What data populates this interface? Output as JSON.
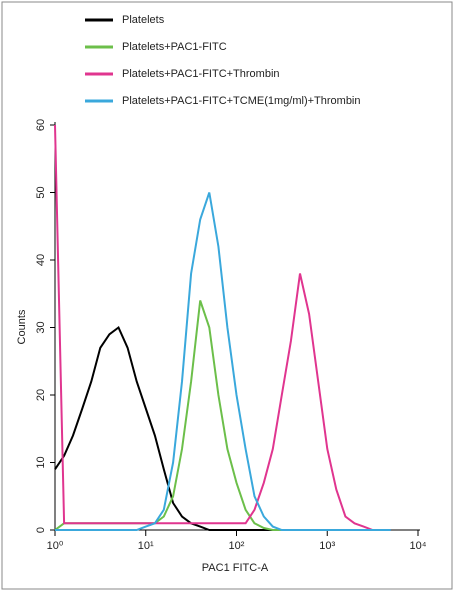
{
  "chart_data": {
    "type": "line",
    "x_label": "PAC1 FITC-A",
    "y_label": "Counts",
    "xscale": "log",
    "xlim": [
      1,
      10000
    ],
    "ylim": [
      0,
      60
    ],
    "xticks": [
      {
        "value": 1,
        "label": "10⁰"
      },
      {
        "value": 10,
        "label": "10¹"
      },
      {
        "value": 100,
        "label": "10²"
      },
      {
        "value": 1000,
        "label": "10³"
      },
      {
        "value": 10000,
        "label": "10⁴"
      }
    ],
    "yticks": [
      0,
      10,
      20,
      30,
      40,
      50,
      60
    ],
    "x": [
      1,
      1.26,
      1.58,
      2,
      2.51,
      3.16,
      3.98,
      5.01,
      6.31,
      7.94,
      10,
      12.6,
      15.8,
      20,
      25.1,
      31.6,
      39.8,
      50.1,
      63.1,
      79.4,
      100,
      126,
      158,
      200,
      251,
      316,
      398,
      501,
      631,
      794,
      1000,
      1259,
      1585,
      1995,
      2512,
      3162,
      3981,
      5012
    ],
    "series": [
      {
        "name": "Platelets",
        "color": "#000000",
        "values": [
          9,
          11,
          14,
          18,
          22,
          27,
          29,
          30,
          27,
          22,
          18,
          14,
          9,
          4,
          2,
          1,
          0.5,
          0,
          0,
          0,
          0,
          0,
          0,
          0,
          0,
          0,
          0,
          0,
          0,
          0,
          0,
          0,
          0,
          0,
          0,
          0,
          0,
          0
        ]
      },
      {
        "name": "Platelets+PAC1-FITC",
        "color": "#6cbf4a",
        "values": [
          0,
          1,
          1,
          1,
          1,
          1,
          1,
          1,
          1,
          1,
          1,
          1,
          2,
          5,
          12,
          22,
          34,
          30,
          20,
          12,
          7,
          3,
          1,
          0.3,
          0,
          0,
          0,
          0,
          0,
          0,
          0,
          0,
          0,
          0,
          0,
          0,
          0,
          0
        ]
      },
      {
        "name": "Platelets+PAC1-FITC+Thrombin",
        "color": "#e0358f",
        "values": [
          60,
          1,
          1,
          1,
          1,
          1,
          1,
          1,
          1,
          1,
          1,
          1,
          1,
          1,
          1,
          1,
          1,
          1,
          1,
          1,
          1,
          1,
          3,
          7,
          12,
          20,
          28,
          38,
          32,
          22,
          12,
          6,
          2,
          1,
          0.5,
          0,
          0,
          0
        ]
      },
      {
        "name": "Platelets+PAC1-FITC+TCME(1mg/ml)+Thrombin",
        "color": "#3aa8dc",
        "values": [
          0,
          0,
          0,
          0,
          0,
          0,
          0,
          0,
          0,
          0,
          0.5,
          1,
          3,
          10,
          22,
          38,
          46,
          50,
          42,
          30,
          20,
          12,
          5,
          2,
          0.5,
          0,
          0,
          0,
          0,
          0,
          0,
          0,
          0,
          0,
          0,
          0,
          0,
          0
        ]
      }
    ]
  }
}
